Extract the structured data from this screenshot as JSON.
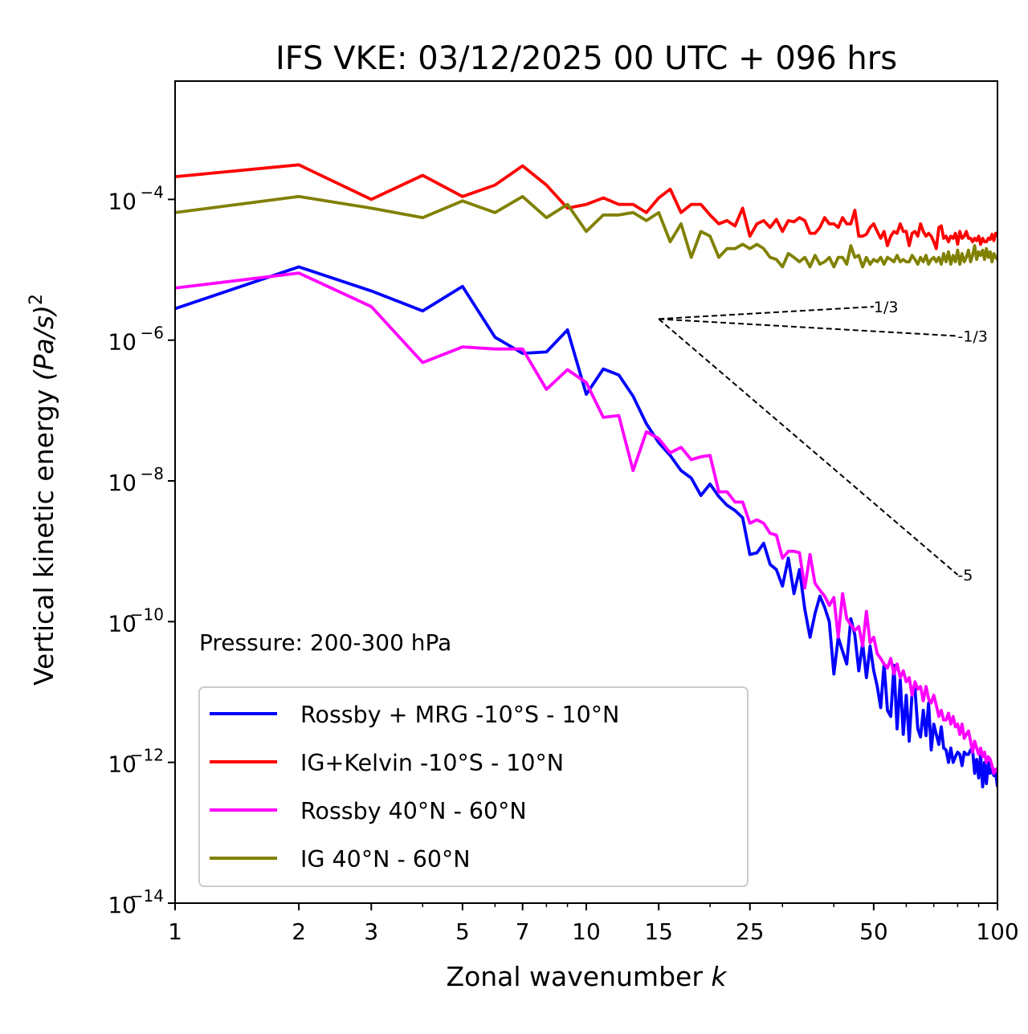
{
  "chart_data": {
    "type": "line",
    "title": "IFS VKE: 03/12/2025 00 UTC + 096 hrs",
    "xlabel": "Zonal wavenumber",
    "xlabel_var": "k",
    "ylabel": "Vertical kinetic energy",
    "ylabel_unit": "(Pa/s)",
    "ylabel_unit_exp": "2",
    "xscale": "log",
    "yscale": "log",
    "xlim": [
      1,
      100
    ],
    "ylim": [
      1e-14,
      0.0048
    ],
    "grid": false,
    "legend_position": "lower-left",
    "annotation": "Pressure: 200-300 hPa",
    "x_ticks": [
      {
        "value": 1,
        "label": "1"
      },
      {
        "value": 2,
        "label": "2"
      },
      {
        "value": 3,
        "label": "3"
      },
      {
        "value": 5,
        "label": "5"
      },
      {
        "value": 7,
        "label": "7"
      },
      {
        "value": 10,
        "label": "10"
      },
      {
        "value": 15,
        "label": "15"
      },
      {
        "value": 25,
        "label": "25"
      },
      {
        "value": 50,
        "label": "50"
      },
      {
        "value": 100,
        "label": "100"
      }
    ],
    "x_minor_ticks": [
      4,
      6,
      8,
      9,
      20,
      30,
      40,
      60,
      70,
      80,
      90
    ],
    "y_ticks": [
      {
        "exp": -4,
        "base": "10",
        "sup": "−4"
      },
      {
        "exp": -6,
        "base": "10",
        "sup": "−6"
      },
      {
        "exp": -8,
        "base": "10",
        "sup": "−8"
      },
      {
        "exp": -10,
        "base": "10",
        "sup": "−10"
      },
      {
        "exp": -12,
        "base": "10",
        "sup": "−12"
      },
      {
        "exp": -14,
        "base": "10",
        "sup": "−14"
      }
    ],
    "reference_slopes": [
      {
        "label": "1/3",
        "slope": 0.3333,
        "k_start": 15,
        "k_end": 50,
        "e_start": 2e-06
      },
      {
        "label": "-1/3",
        "slope": -0.3333,
        "k_start": 15,
        "k_end": 80,
        "e_start": 2e-06
      },
      {
        "label": "-5",
        "slope": -5,
        "k_start": 15,
        "k_end": 80,
        "e_start": 2e-06
      }
    ],
    "series": [
      {
        "name": "Rossby + MRG -10°S - 10°N",
        "color": "#0000ff",
        "x": [
          1,
          2,
          3,
          4,
          5,
          6,
          7,
          8,
          9,
          10,
          11,
          12,
          13,
          14,
          15,
          16,
          17,
          18,
          19,
          20,
          21,
          22,
          23,
          24,
          25,
          26,
          27,
          28,
          29,
          30,
          31,
          32,
          33,
          34,
          35,
          36,
          37,
          38,
          39,
          40,
          41,
          42,
          43,
          44,
          45,
          46,
          47,
          48,
          49,
          50,
          51,
          52,
          53,
          54,
          55,
          56,
          57,
          58,
          59,
          60,
          61,
          62,
          63,
          64,
          65,
          66,
          67,
          68,
          69,
          70,
          71,
          72,
          73,
          74,
          75,
          76,
          77,
          78,
          79,
          80,
          81,
          82,
          83,
          84,
          85,
          86,
          87,
          88,
          89,
          90,
          91,
          92,
          93,
          94,
          95,
          96,
          97,
          98,
          99,
          100
        ],
        "y": [
          2.8e-06,
          1.1e-05,
          5e-06,
          2.6e-06,
          5.8e-06,
          1.1e-06,
          6.5e-07,
          6.8e-07,
          1.4e-06,
          1.7e-07,
          3.9e-07,
          3.2e-07,
          1.6e-07,
          6.5e-08,
          3.5e-08,
          2.3e-08,
          1.4e-08,
          1.1e-08,
          6.2e-09,
          9e-09,
          6e-09,
          4.5e-09,
          3.8e-09,
          3e-09,
          9e-10,
          9.5e-10,
          1.3e-09,
          6.5e-10,
          5.5e-10,
          3.2e-10,
          8e-10,
          2.5e-10,
          5.5e-10,
          1.5e-10,
          6e-11,
          1.3e-10,
          2.3e-10,
          1.6e-10,
          1e-10,
          1.8e-11,
          6e-11,
          3.8e-11,
          2.5e-11,
          1.1e-10,
          6.5e-11,
          2e-11,
          5e-11,
          1.6e-11,
          4.5e-11,
          2e-11,
          1.2e-11,
          6e-12,
          2.5e-11,
          5.5e-12,
          4.5e-12,
          2.4e-11,
          3e-12,
          1.5e-11,
          2.5e-12,
          9e-12,
          2e-12,
          1e-11,
          1.1e-11,
          3e-12,
          2.3e-12,
          5.5e-12,
          2.4e-12,
          7e-12,
          1.5e-12,
          3.5e-12,
          2.5e-12,
          1.8e-12,
          3.2e-12,
          1.6e-12,
          1.5e-12,
          1e-12,
          1.6e-12,
          1e-12,
          1.2e-12,
          1.4e-12,
          1.3e-12,
          9e-13,
          1.4e-12,
          1.3e-12,
          1.3e-12,
          1.5e-12,
          1.5e-12,
          7e-13,
          1.1e-12,
          6e-13,
          1.3e-12,
          4.5e-13,
          1e-12,
          5e-13,
          1e-12,
          7e-13,
          8e-13,
          6.5e-13,
          7e-13,
          4.5e-13
        ]
      },
      {
        "name": "IG+Kelvin -10°S - 10°N",
        "color": "#ff0000",
        "x": [
          1,
          2,
          3,
          4,
          5,
          6,
          7,
          8,
          9,
          10,
          11,
          12,
          13,
          14,
          15,
          16,
          17,
          18,
          19,
          20,
          21,
          22,
          23,
          24,
          25,
          26,
          27,
          28,
          29,
          30,
          31,
          32,
          33,
          34,
          35,
          36,
          37,
          38,
          39,
          40,
          41,
          42,
          43,
          44,
          45,
          46,
          47,
          48,
          49,
          50,
          51,
          52,
          53,
          54,
          55,
          56,
          57,
          58,
          59,
          60,
          61,
          62,
          63,
          64,
          65,
          66,
          67,
          68,
          69,
          70,
          71,
          72,
          73,
          74,
          75,
          76,
          77,
          78,
          79,
          80,
          81,
          82,
          83,
          84,
          85,
          86,
          87,
          88,
          89,
          90,
          91,
          92,
          93,
          94,
          95,
          96,
          97,
          98,
          99,
          100
        ],
        "y": [
          0.00021,
          0.00031,
          0.0001,
          0.00022,
          0.00011,
          0.00016,
          0.0003,
          0.00016,
          7.5e-05,
          8.5e-05,
          0.000105,
          8.5e-05,
          8.5e-05,
          6.5e-05,
          0.000105,
          0.00014,
          6.5e-05,
          8.5e-05,
          8.5e-05,
          6e-05,
          4.5e-05,
          5e-05,
          4.2e-05,
          7.5e-05,
          3e-05,
          4.5e-05,
          5e-05,
          4e-05,
          5.2e-05,
          3.5e-05,
          5e-05,
          4.8e-05,
          5.5e-05,
          5e-05,
          3.3e-05,
          3.3e-05,
          4e-05,
          5.5e-05,
          4.5e-05,
          4.5e-05,
          4e-05,
          5.5e-05,
          4.5e-05,
          4.5e-05,
          7e-05,
          3e-05,
          3e-05,
          3.2e-05,
          4e-05,
          4.5e-05,
          3.5e-05,
          2.8e-05,
          3.5e-05,
          2.2e-05,
          3e-05,
          3.5e-05,
          3.3e-05,
          4.5e-05,
          3.5e-05,
          3.5e-05,
          2.2e-05,
          3.3e-05,
          3.5e-05,
          3e-05,
          4.5e-05,
          3.5e-05,
          3e-05,
          3.3e-05,
          3e-05,
          2.5e-05,
          2e-05,
          4e-05,
          4.2e-05,
          2.8e-05,
          3e-05,
          2.5e-05,
          3e-05,
          2.8e-05,
          3.3e-05,
          2.3e-05,
          3.5e-05,
          2.8e-05,
          3e-05,
          3.5e-05,
          2.8e-05,
          2.8e-05,
          2.5e-05,
          2.8e-05,
          2.6e-05,
          3e-05,
          2.3e-05,
          2.8e-05,
          2.5e-05,
          2.5e-05,
          2.8e-05,
          2.7e-05,
          3.2e-05,
          2.6e-05,
          3.3e-05,
          3e-05
        ]
      },
      {
        "name": "Rossby 40°N - 60°N",
        "color": "#ff00ff",
        "x": [
          1,
          2,
          3,
          4,
          5,
          6,
          7,
          8,
          9,
          10,
          11,
          12,
          13,
          14,
          15,
          16,
          17,
          18,
          19,
          20,
          21,
          22,
          23,
          24,
          25,
          26,
          27,
          28,
          29,
          30,
          31,
          32,
          33,
          34,
          35,
          36,
          37,
          38,
          39,
          40,
          41,
          42,
          43,
          44,
          45,
          46,
          47,
          48,
          49,
          50,
          51,
          52,
          53,
          54,
          55,
          56,
          57,
          58,
          59,
          60,
          61,
          62,
          63,
          64,
          65,
          66,
          67,
          68,
          69,
          70,
          71,
          72,
          73,
          74,
          75,
          76,
          77,
          78,
          79,
          80,
          81,
          82,
          83,
          84,
          85,
          86,
          87,
          88,
          89,
          90,
          91,
          92,
          93,
          94,
          95,
          96,
          97,
          98,
          99,
          100
        ],
        "y": [
          5.5e-06,
          9e-06,
          3e-06,
          4.8e-07,
          8e-07,
          7.5e-07,
          7.5e-07,
          2e-07,
          3.8e-07,
          2.5e-07,
          8e-08,
          8.5e-08,
          1.4e-08,
          5e-08,
          4e-08,
          2.5e-08,
          3e-08,
          2e-08,
          2.2e-08,
          2.3e-08,
          7e-09,
          7e-09,
          5e-09,
          5e-09,
          2.5e-09,
          2.8e-09,
          2.5e-09,
          1.8e-09,
          1.7e-09,
          8e-10,
          1e-09,
          1e-09,
          9.5e-10,
          3e-10,
          9e-10,
          3.5e-10,
          2.8e-10,
          2.3e-10,
          1.7e-10,
          2.2e-10,
          6e-11,
          2.5e-10,
          1.1e-10,
          9e-11,
          7.5e-11,
          8.5e-11,
          4.5e-11,
          1.4e-10,
          5e-11,
          6e-11,
          3.5e-11,
          3e-11,
          2.5e-11,
          2.2e-11,
          3e-11,
          1.8e-11,
          2.5e-11,
          1.6e-11,
          2e-11,
          1.4e-11,
          1.6e-11,
          9e-12,
          1.4e-11,
          1.1e-11,
          1.2e-11,
          7.5e-12,
          1.2e-11,
          8e-12,
          7e-12,
          9e-12,
          6.5e-12,
          4.5e-12,
          5.5e-12,
          4e-12,
          4e-12,
          5e-12,
          3.5e-12,
          4.5e-12,
          3.2e-12,
          3.5e-12,
          2.5e-12,
          3.5e-12,
          2.2e-12,
          2.5e-12,
          2.8e-12,
          2e-12,
          1.4e-12,
          2e-12,
          1.6e-12,
          1.3e-12,
          1.6e-12,
          1.2e-12,
          1.4e-12,
          1e-12,
          1.2e-12,
          1.1e-12,
          9e-13,
          7e-13,
          8e-13,
          8e-13
        ]
      },
      {
        "name": "IG 40°N - 60°N",
        "color": "#808000",
        "x": [
          1,
          2,
          3,
          4,
          5,
          6,
          7,
          8,
          9,
          10,
          11,
          12,
          13,
          14,
          15,
          16,
          17,
          18,
          19,
          20,
          21,
          22,
          23,
          24,
          25,
          26,
          27,
          28,
          29,
          30,
          31,
          32,
          33,
          34,
          35,
          36,
          37,
          38,
          39,
          40,
          41,
          42,
          43,
          44,
          45,
          46,
          47,
          48,
          49,
          50,
          51,
          52,
          53,
          54,
          55,
          56,
          57,
          58,
          59,
          60,
          61,
          62,
          63,
          64,
          65,
          66,
          67,
          68,
          69,
          70,
          71,
          72,
          73,
          74,
          75,
          76,
          77,
          78,
          79,
          80,
          81,
          82,
          83,
          84,
          85,
          86,
          87,
          88,
          89,
          90,
          91,
          92,
          93,
          94,
          95,
          96,
          97,
          98,
          99,
          100
        ],
        "y": [
          6.5e-05,
          0.00011,
          7.5e-05,
          5.5e-05,
          9.5e-05,
          6.5e-05,
          0.00011,
          5.5e-05,
          8.5e-05,
          3.5e-05,
          6e-05,
          6e-05,
          6.5e-05,
          5e-05,
          6.5e-05,
          2.5e-05,
          4.5e-05,
          1.5e-05,
          3.5e-05,
          3e-05,
          1.5e-05,
          2e-05,
          2e-05,
          2.3e-05,
          2e-05,
          2.3e-05,
          2e-05,
          1.5e-05,
          1.4e-05,
          1.1e-05,
          1.7e-05,
          1.5e-05,
          1.3e-05,
          1.5e-05,
          1.1e-05,
          1.6e-05,
          1.2e-05,
          1.3e-05,
          1.5e-05,
          1.1e-05,
          1.5e-05,
          1.5e-05,
          1.2e-05,
          2.2e-05,
          1.5e-05,
          1.6e-05,
          1.1e-05,
          1.5e-05,
          1.2e-05,
          1.4e-05,
          1.3e-05,
          1.5e-05,
          1.2e-05,
          1.5e-05,
          1.4e-05,
          1.3e-05,
          1.6e-05,
          1.3e-05,
          1.4e-05,
          1.3e-05,
          1.3e-05,
          1.6e-05,
          1.4e-05,
          1.2e-05,
          1.5e-05,
          1.3e-05,
          1.6e-05,
          1.2e-05,
          1.4e-05,
          1.5e-05,
          1.3e-05,
          1.5e-05,
          1.2e-05,
          1.7e-05,
          1.3e-05,
          1.8e-05,
          1.2e-05,
          1.6e-05,
          1.3e-05,
          1.9e-05,
          1.2e-05,
          1.7e-05,
          1.3e-05,
          1.5e-05,
          1.9e-05,
          1.3e-05,
          1.6e-05,
          2.2e-05,
          1.4e-05,
          1.8e-05,
          1.6e-05,
          1.9e-05,
          1.4e-05,
          2e-05,
          1.5e-05,
          1.8e-05,
          1.3e-05,
          1.7e-05,
          1.5e-05,
          1.4e-05
        ]
      }
    ]
  }
}
